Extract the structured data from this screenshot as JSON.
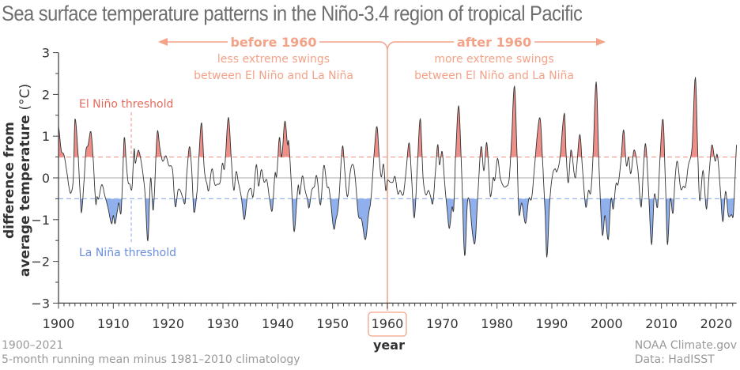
{
  "title": "Sea surface temperature patterns in the Niño-3.4 region of tropical Pacific",
  "footer": {
    "left_line1": "1900–2021",
    "left_line2": "5-month running mean minus 1981–2010 climatology",
    "right_line1": "NOAA Climate.gov",
    "right_line2": "Data: HadISST"
  },
  "annotations": {
    "before_head": "before 1960",
    "before_line1": "less extreme swings",
    "before_line2": "between El Niño and La Niña",
    "after_head": "after 1960",
    "after_line1": "more extreme swings",
    "after_line2": "between El Niño and La Niña",
    "highlight_year": "1960",
    "el_nino_label": "El Niño threshold",
    "la_nina_label": "La Niña threshold"
  },
  "colors": {
    "el_nino_fill": "#ee8f8a",
    "la_nina_fill": "#8fb0ec",
    "el_nino_line": "#f2a397",
    "la_nina_line": "#9ab5ee",
    "annotation": "#f4a288",
    "series_line": "#333333",
    "zero_line": "#bbbbbb"
  },
  "chart_data": {
    "type": "area",
    "title": "Sea surface temperature patterns in the Niño-3.4 region of tropical Pacific",
    "xlabel": "year",
    "ylabel": "difference from average temperature (°C)",
    "ylabel_line1": "difference from",
    "ylabel_line2": "average temperature",
    "ylabel_unit": "(°C)",
    "xlim": [
      1900,
      2023.7
    ],
    "ylim": [
      -3,
      3
    ],
    "xticks": [
      1900,
      1910,
      1920,
      1930,
      1940,
      1950,
      1960,
      1970,
      1980,
      1990,
      2000,
      2010,
      2020
    ],
    "yticks": [
      3,
      2,
      1,
      0,
      -1,
      -2,
      -3
    ],
    "ytick_labels": [
      "3",
      "2",
      "1",
      "0",
      "−1",
      "−2",
      "−3"
    ],
    "thresholds": {
      "el_nino": 0.5,
      "la_nina": -0.5
    },
    "grid": false,
    "series": [
      {
        "name": "Niño-3.4 anomaly",
        "x": [
          1900.0,
          1900.5,
          1901.0,
          1901.5,
          1902.0,
          1902.3,
          1902.7,
          1903.0,
          1903.6,
          1904.0,
          1904.2,
          1904.7,
          1905.0,
          1905.4,
          1905.9,
          1906.3,
          1906.8,
          1907.0,
          1907.3,
          1907.9,
          1908.5,
          1909.0,
          1909.7,
          1910.0,
          1910.3,
          1910.8,
          1911.0,
          1911.4,
          1911.7,
          1912.0,
          1912.4,
          1912.7,
          1913.0,
          1913.4,
          1913.8,
          1914.0,
          1914.4,
          1914.7,
          1915.3,
          1915.8,
          1916.3,
          1916.8,
          1917.3,
          1918.0,
          1918.5,
          1919.0,
          1919.6,
          1920.1,
          1920.8,
          1921.3,
          1921.8,
          1922.2,
          1922.6,
          1923.1,
          1923.4,
          1923.9,
          1924.3,
          1924.7,
          1925.3,
          1925.6,
          1926.1,
          1926.6,
          1927.1,
          1927.4,
          1928.0,
          1928.5,
          1929.0,
          1929.5,
          1929.9,
          1930.3,
          1931.0,
          1931.6,
          1932.0,
          1932.4,
          1932.8,
          1933.4,
          1933.9,
          1934.5,
          1935.1,
          1935.5,
          1936.1,
          1936.5,
          1937.0,
          1937.5,
          1938.0,
          1938.5,
          1939.0,
          1939.5,
          1939.8,
          1940.3,
          1940.7,
          1941.3,
          1941.8,
          1942.0,
          1942.5,
          1943.0,
          1943.7,
          1944.0,
          1944.5,
          1945.0,
          1945.4,
          1945.7,
          1946.2,
          1946.7,
          1947.1,
          1947.8,
          1948.4,
          1949.0,
          1949.4,
          1950.2,
          1950.6,
          1951.1,
          1951.8,
          1952.2,
          1952.7,
          1953.3,
          1953.8,
          1954.2,
          1954.7,
          1955.3,
          1956.0,
          1956.6,
          1957.0,
          1957.6,
          1958.1,
          1958.6,
          1958.9,
          1959.3,
          1959.7,
          1960.0,
          1960.5,
          1961.0,
          1961.4,
          1961.9,
          1962.3,
          1962.9,
          1963.4,
          1963.97,
          1964.4,
          1964.9,
          1965.4,
          1966.0,
          1966.5,
          1967.0,
          1967.5,
          1967.9,
          1968.3,
          1968.8,
          1969.2,
          1969.5,
          1970.0,
          1970.5,
          1970.9,
          1971.3,
          1971.8,
          1972.1,
          1972.4,
          1973.0,
          1973.5,
          1974.1,
          1974.6,
          1975.0,
          1975.5,
          1976.0,
          1976.5,
          1977.1,
          1977.6,
          1978.1,
          1978.5,
          1978.8,
          1979.3,
          1979.6,
          1980.1,
          1980.6,
          1981.2,
          1981.7,
          1982.2,
          1982.6,
          1983.2,
          1983.7,
          1984.0,
          1984.5,
          1985.2,
          1985.8,
          1986.3,
          1986.8,
          1987.4,
          1987.9,
          1988.4,
          1988.8,
          1989.1,
          1989.6,
          1990.1,
          1990.6,
          1990.9,
          1991.5,
          1992.3,
          1992.6,
          1993.0,
          1993.5,
          1994.3,
          1995.1,
          1995.6,
          1996.2,
          1996.7,
          1997.1,
          1997.5,
          1998.1,
          1998.6,
          1999.2,
          1999.7,
          2000.3,
          2000.8,
          2001.2,
          2001.7,
          2002.1,
          2002.6,
          2003.1,
          2003.6,
          2004.0,
          2004.4,
          2005.0,
          2005.7,
          2006.3,
          2006.7,
          2007.1,
          2007.6,
          2008.2,
          2008.7,
          2009.3,
          2009.7,
          2010.3,
          2010.8,
          2011.1,
          2011.6,
          2012.1,
          2012.5,
          2012.9,
          2013.5,
          2014.0,
          2014.4,
          2014.9,
          2015.6,
          2016.2,
          2016.7,
          2017.0,
          2017.6,
          2018.2,
          2018.7,
          2019.2,
          2019.8,
          2020.2,
          2020.7,
          2021.2,
          2021.7,
          2022.2,
          2022.8,
          2023.1,
          2023.4,
          2023.7
        ],
        "y": [
          1.23,
          0.66,
          0.55,
          0.16,
          -0.28,
          -0.35,
          0.0,
          1.41,
          0.5,
          -0.47,
          -0.82,
          0.0,
          0.66,
          0.79,
          1.11,
          0.5,
          -0.6,
          -0.45,
          -0.5,
          -0.16,
          -0.45,
          -0.7,
          -1.1,
          -0.9,
          -1.1,
          -0.75,
          -0.6,
          -0.85,
          0.0,
          0.97,
          0.3,
          -0.1,
          -0.15,
          -0.25,
          0.69,
          0.35,
          0.6,
          0.63,
          0.2,
          -0.4,
          -1.51,
          0.0,
          -0.77,
          1.07,
          0.7,
          0.4,
          0.53,
          0.3,
          0.2,
          -0.69,
          -0.3,
          -0.3,
          -0.45,
          -0.6,
          0.1,
          0.75,
          0.2,
          -0.82,
          -0.3,
          0.5,
          1.32,
          0.2,
          -0.15,
          -0.3,
          0.22,
          -0.15,
          -0.15,
          -0.1,
          0.35,
          0.25,
          1.45,
          0.3,
          -0.3,
          0.15,
          -0.1,
          -0.5,
          -1.0,
          -0.4,
          -0.25,
          -0.45,
          0.32,
          -0.2,
          0.2,
          -0.1,
          -0.05,
          -0.5,
          -0.78,
          0.1,
          0.05,
          0.97,
          0.5,
          1.36,
          0.8,
          0.85,
          -0.2,
          -1.29,
          -0.2,
          -0.4,
          0.05,
          -0.3,
          -0.5,
          -0.72,
          -0.3,
          -0.2,
          0.05,
          -0.65,
          0.3,
          -0.2,
          -0.3,
          -1.2,
          -1.0,
          -0.6,
          0.75,
          0.2,
          -0.45,
          0.2,
          0.3,
          -0.1,
          -0.9,
          -1.0,
          -1.48,
          -0.85,
          -0.5,
          0.6,
          1.23,
          0.35,
          0.02,
          0.33,
          -0.3,
          -0.06,
          -0.1,
          -0.1,
          0.03,
          -0.38,
          -0.3,
          -0.4,
          0.16,
          0.84,
          0.03,
          -0.96,
          0.1,
          1.42,
          0.03,
          -0.4,
          -0.3,
          -0.45,
          -0.6,
          0.2,
          0.8,
          0.31,
          0.63,
          -0.2,
          -0.75,
          -1.21,
          -0.7,
          -0.75,
          0.4,
          1.73,
          0.3,
          -1.86,
          -0.6,
          -0.6,
          -1.3,
          -1.54,
          -0.4,
          0.75,
          0.17,
          0.85,
          0.2,
          -0.45,
          0.0,
          -0.05,
          0.47,
          0.0,
          -0.2,
          -0.2,
          -0.05,
          0.8,
          2.2,
          0.4,
          -0.87,
          -0.6,
          -1.09,
          -0.5,
          -0.5,
          0.2,
          1.1,
          1.4,
          0.2,
          -0.9,
          -1.9,
          -0.6,
          0.05,
          0.22,
          0.15,
          0.5,
          1.55,
          0.6,
          -0.12,
          0.67,
          0.0,
          1.04,
          0.2,
          -0.7,
          -0.3,
          -0.35,
          0.5,
          2.3,
          0.3,
          -1.35,
          -0.9,
          -1.48,
          -0.5,
          -0.75,
          -0.15,
          -0.15,
          0.4,
          1.15,
          0.3,
          0.5,
          0.1,
          0.67,
          0.2,
          -0.7,
          0.2,
          0.82,
          -0.2,
          -1.6,
          -0.4,
          -0.7,
          0.4,
          1.4,
          -0.4,
          -1.6,
          -0.5,
          -0.85,
          0.0,
          0.4,
          -0.25,
          -0.2,
          -0.2,
          0.3,
          0.75,
          2.41,
          0.3,
          -0.55,
          0.18,
          -0.75,
          0.1,
          0.79,
          0.4,
          0.55,
          -0.2,
          -1.05,
          -0.32,
          -0.9,
          -0.88,
          -0.9,
          -0.1,
          0.79
        ]
      }
    ]
  }
}
